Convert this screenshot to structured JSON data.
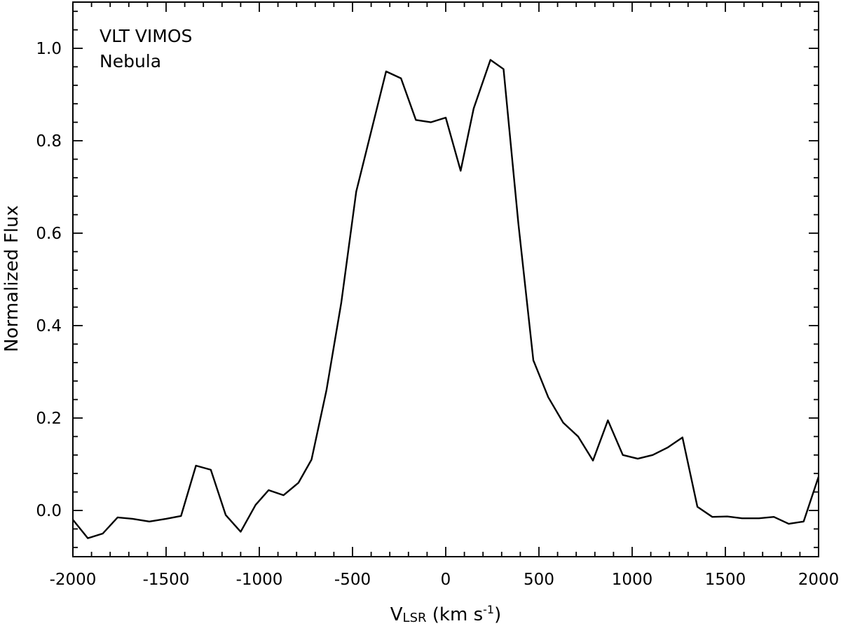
{
  "chart_data": {
    "type": "line",
    "title": "",
    "annotations": [
      "VLT VIMOS",
      "Nebula"
    ],
    "xlabel": {
      "main": "V",
      "subscript": "LSR",
      "units_before_sup": " (km s",
      "superscript": "-1",
      "units_after_sup": ")"
    },
    "ylabel": "Normalized Flux",
    "xlim": [
      -2000,
      2000
    ],
    "ylim": [
      -0.1,
      1.1
    ],
    "x_ticks": [
      -2000,
      -1500,
      -1000,
      -500,
      0,
      500,
      1000,
      1500,
      2000
    ],
    "x_tick_labels": [
      "-2000",
      "-1500",
      "-1000",
      "-500",
      "0",
      "500",
      "1000",
      "1500",
      "2000"
    ],
    "y_ticks": [
      0.0,
      0.2,
      0.4,
      0.6,
      0.8,
      1.0
    ],
    "y_tick_labels": [
      "0.0",
      "0.2",
      "0.4",
      "0.6",
      "0.8",
      "1.0"
    ],
    "grid": false,
    "legend": "none",
    "series": [
      {
        "color": "#000000",
        "x": [
          -2000,
          -1920,
          -1840,
          -1760,
          -1680,
          -1590,
          -1500,
          -1420,
          -1340,
          -1260,
          -1180,
          -1100,
          -1020,
          -950,
          -870,
          -790,
          -720,
          -640,
          -560,
          -480,
          -400,
          -320,
          -240,
          -160,
          -80,
          0,
          80,
          150,
          240,
          310,
          390,
          470,
          550,
          630,
          710,
          790,
          870,
          950,
          1030,
          1110,
          1190,
          1270,
          1350,
          1430,
          1510,
          1590,
          1680,
          1760,
          1840,
          1920,
          2000
        ],
        "y": [
          -0.02,
          -0.06,
          -0.05,
          -0.015,
          -0.018,
          -0.024,
          -0.018,
          -0.012,
          0.097,
          0.088,
          -0.01,
          -0.046,
          0.012,
          0.044,
          0.033,
          0.06,
          0.11,
          0.26,
          0.45,
          0.69,
          0.82,
          0.95,
          0.935,
          0.845,
          0.84,
          0.85,
          0.735,
          0.87,
          0.975,
          0.955,
          0.62,
          0.325,
          0.245,
          0.19,
          0.16,
          0.108,
          0.195,
          0.12,
          0.112,
          0.12,
          0.136,
          0.158,
          0.008,
          -0.014,
          -0.013,
          -0.017,
          -0.017,
          -0.014,
          -0.029,
          -0.024,
          0.073
        ]
      }
    ]
  }
}
